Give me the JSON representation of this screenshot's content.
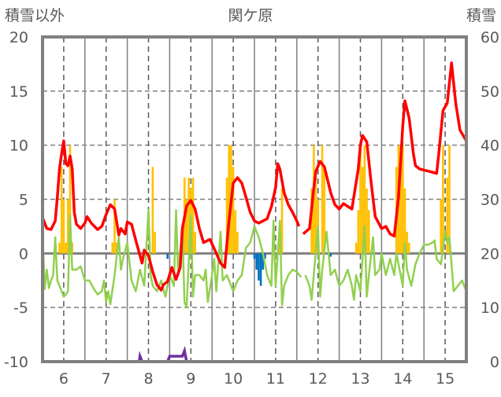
{
  "chart_data": {
    "type": "bar+line",
    "title": "関ケ原",
    "ylabel": "積雪以外",
    "y2label": "積雪",
    "ylim": [
      -10,
      20
    ],
    "y2lim": [
      0,
      60
    ],
    "xlim": [
      5.5,
      15.5
    ],
    "yticks": [
      "20",
      "15",
      "10",
      "5",
      "0",
      "-5",
      "-10"
    ],
    "y2ticks": [
      "60",
      "50",
      "40",
      "30",
      "20",
      "10",
      "0"
    ],
    "xticks": [
      "6",
      "7",
      "8",
      "9",
      "10",
      "11",
      "12",
      "13",
      "14",
      "15"
    ],
    "colors": {
      "red": "#ff0000",
      "green": "#92d050",
      "orange": "#ffc000",
      "blue": "#0070c0",
      "purple": "#7030a0",
      "frame": "#808080"
    },
    "red_series": [
      [
        5.5,
        3.3
      ],
      [
        5.6,
        2.3
      ],
      [
        5.7,
        2.2
      ],
      [
        5.8,
        3.0
      ],
      [
        5.85,
        5.2
      ],
      [
        5.9,
        7.8
      ],
      [
        5.95,
        9.2
      ],
      [
        6.0,
        10.4
      ],
      [
        6.05,
        8.3
      ],
      [
        6.1,
        8.1
      ],
      [
        6.15,
        9.0
      ],
      [
        6.2,
        7.8
      ],
      [
        6.25,
        3.8
      ],
      [
        6.3,
        2.7
      ],
      [
        6.4,
        2.3
      ],
      [
        6.5,
        2.8
      ],
      [
        6.55,
        3.4
      ],
      [
        6.65,
        2.8
      ],
      [
        6.8,
        2.2
      ],
      [
        6.9,
        2.5
      ],
      [
        7.0,
        3.6
      ],
      [
        7.1,
        4.5
      ],
      [
        7.2,
        4.1
      ],
      [
        7.3,
        1.7
      ],
      [
        7.35,
        2.3
      ],
      [
        7.45,
        1.8
      ],
      [
        7.5,
        2.9
      ],
      [
        7.6,
        2.7
      ],
      [
        7.7,
        1.2
      ],
      [
        7.8,
        -0.2
      ],
      [
        7.85,
        -0.9
      ],
      [
        7.9,
        0.3
      ],
      [
        8.0,
        -0.2
      ],
      [
        8.1,
        -1.7
      ],
      [
        8.2,
        -2.9
      ],
      [
        8.3,
        -3.4
      ],
      [
        8.35,
        -2.9
      ],
      [
        8.45,
        -2.6
      ],
      [
        8.55,
        -1.3
      ],
      [
        8.65,
        -2.4
      ],
      [
        8.75,
        -1.3
      ],
      [
        8.8,
        2.3
      ],
      [
        8.9,
        4.4
      ],
      [
        9.0,
        4.9
      ],
      [
        9.1,
        4.1
      ],
      [
        9.2,
        2.3
      ],
      [
        9.3,
        1.0
      ],
      [
        9.45,
        1.3
      ],
      [
        9.6,
        0
      ],
      [
        9.7,
        -0.9
      ],
      [
        9.8,
        -1.3
      ],
      [
        9.9,
        3.0
      ],
      [
        10.0,
        6.5
      ],
      [
        10.1,
        7.0
      ],
      [
        10.2,
        6.5
      ],
      [
        10.3,
        5.2
      ],
      [
        10.4,
        3.8
      ],
      [
        10.5,
        3.0
      ],
      [
        10.6,
        2.8
      ],
      [
        10.8,
        3.2
      ],
      [
        10.9,
        4.3
      ],
      [
        11.0,
        6.1
      ],
      [
        11.05,
        8.3
      ],
      [
        11.1,
        7.8
      ],
      [
        11.2,
        5.6
      ],
      [
        11.3,
        4.5
      ],
      [
        11.4,
        3.8
      ],
      [
        11.5,
        3.0
      ],
      [
        11.55,
        2.5
      ],
      null,
      [
        11.65,
        1.8
      ],
      [
        11.8,
        2.3
      ],
      [
        11.9,
        6.0
      ],
      [
        11.95,
        7.6
      ],
      [
        12.05,
        8.5
      ],
      [
        12.15,
        8.0
      ],
      [
        12.3,
        5.6
      ],
      [
        12.4,
        4.5
      ],
      [
        12.5,
        4.1
      ],
      [
        12.6,
        4.6
      ],
      [
        12.8,
        4.1
      ],
      [
        12.95,
        7.8
      ],
      [
        13.0,
        10.0
      ],
      [
        13.05,
        10.9
      ],
      [
        13.15,
        10.3
      ],
      [
        13.25,
        6.7
      ],
      [
        13.35,
        3.4
      ],
      [
        13.5,
        2.3
      ],
      [
        13.6,
        2.5
      ],
      [
        13.7,
        1.8
      ],
      [
        13.8,
        1.6
      ],
      [
        13.9,
        5.2
      ],
      [
        14.0,
        11.8
      ],
      [
        14.05,
        14.1
      ],
      [
        14.15,
        12.5
      ],
      [
        14.25,
        9.2
      ],
      [
        14.3,
        8.1
      ],
      [
        14.4,
        7.8
      ],
      [
        14.6,
        7.6
      ],
      [
        14.8,
        7.4
      ],
      [
        14.85,
        9.2
      ],
      [
        14.95,
        13.2
      ],
      [
        15.05,
        13.9
      ],
      [
        15.15,
        17.6
      ],
      [
        15.25,
        13.9
      ],
      [
        15.35,
        11.4
      ],
      [
        15.5,
        10.4
      ]
    ],
    "green_series": [
      [
        5.5,
        2.0
      ],
      [
        5.55,
        -3.3
      ],
      [
        5.6,
        -1.5
      ],
      [
        5.65,
        -3.2
      ],
      [
        5.7,
        -2.5
      ],
      [
        5.75,
        -2
      ],
      [
        5.8,
        1.5
      ],
      [
        5.85,
        -2.5
      ],
      [
        5.9,
        -3
      ],
      [
        5.95,
        -3.5
      ],
      [
        6.0,
        -4
      ],
      [
        6.05,
        -3.8
      ],
      [
        6.1,
        -3.5
      ],
      [
        6.15,
        3.5
      ],
      [
        6.2,
        -1.5
      ],
      [
        6.3,
        -1.5
      ],
      [
        6.4,
        -1.2
      ],
      [
        6.5,
        -2.5
      ],
      [
        6.6,
        -2.5
      ],
      [
        6.7,
        -3.2
      ],
      [
        6.8,
        -3.8
      ],
      [
        6.9,
        -3.5
      ],
      [
        6.95,
        -2.5
      ],
      [
        7.0,
        -4.5
      ],
      [
        7.05,
        -3.5
      ],
      [
        7.1,
        -4.7
      ],
      [
        7.2,
        -2
      ],
      [
        7.3,
        1.5
      ],
      [
        7.35,
        -1.5
      ],
      [
        7.4,
        -0.5
      ],
      [
        7.5,
        1
      ],
      [
        7.6,
        -2.5
      ],
      [
        7.7,
        -3.5
      ],
      [
        7.8,
        -1.5
      ],
      [
        7.9,
        -3
      ],
      [
        8.0,
        4
      ],
      [
        8.05,
        -2
      ],
      [
        8.1,
        -3
      ],
      [
        8.2,
        -3.5
      ],
      [
        8.3,
        -2.5
      ],
      [
        8.4,
        -4
      ],
      [
        8.5,
        -2
      ],
      [
        8.6,
        -3
      ],
      [
        8.65,
        4
      ],
      [
        8.7,
        -2
      ],
      [
        8.8,
        2.5
      ],
      [
        8.85,
        -4.5
      ],
      [
        8.9,
        -5
      ],
      [
        9.0,
        3.5
      ],
      [
        9.05,
        -4
      ],
      [
        9.1,
        -2
      ],
      [
        9.2,
        -2
      ],
      [
        9.3,
        -2.5
      ],
      [
        9.35,
        -1.5
      ],
      [
        9.4,
        -4.5
      ],
      [
        9.5,
        -2
      ],
      [
        9.55,
        -0.5
      ],
      [
        9.6,
        -3.5
      ],
      [
        9.7,
        2
      ],
      [
        9.75,
        -2.5
      ],
      [
        9.85,
        -2
      ],
      [
        10.0,
        -3.5
      ],
      [
        10.1,
        -2.5
      ],
      [
        10.2,
        -2
      ],
      [
        10.3,
        0.5
      ],
      [
        10.4,
        1
      ],
      [
        10.5,
        2.5
      ],
      [
        10.6,
        1.5
      ],
      [
        10.7,
        0
      ],
      [
        10.8,
        -2
      ],
      [
        10.9,
        -3
      ],
      [
        10.95,
        3
      ],
      [
        11.0,
        -3
      ],
      [
        11.1,
        3
      ],
      [
        11.15,
        -4.8
      ],
      [
        11.2,
        -3
      ],
      [
        11.3,
        -2
      ],
      [
        11.4,
        -1.5
      ],
      [
        11.5,
        -1.7
      ],
      [
        11.6,
        -2.2
      ],
      null,
      [
        11.7,
        -2
      ],
      [
        11.8,
        -3
      ],
      [
        11.85,
        -4.3
      ],
      [
        11.9,
        -2
      ],
      [
        12.0,
        2.5
      ],
      [
        12.05,
        -4
      ],
      [
        12.1,
        -1.5
      ],
      [
        12.2,
        2
      ],
      [
        12.3,
        -2
      ],
      [
        12.4,
        -1.5
      ],
      [
        12.5,
        -3
      ],
      [
        12.6,
        -2.5
      ],
      [
        12.7,
        -1.5
      ],
      [
        12.8,
        -3
      ],
      [
        12.85,
        -4.3
      ],
      [
        12.9,
        -2
      ],
      [
        13.0,
        -3.5
      ],
      [
        13.1,
        2.5
      ],
      [
        13.15,
        -4
      ],
      [
        13.2,
        -2
      ],
      [
        13.3,
        1.5
      ],
      [
        13.35,
        -2
      ],
      [
        13.45,
        -1.5
      ],
      [
        13.5,
        0
      ],
      [
        13.6,
        -2
      ],
      [
        13.7,
        -0.5
      ],
      [
        13.8,
        -2
      ],
      [
        13.85,
        0
      ],
      [
        14.0,
        -3
      ],
      [
        14.05,
        1
      ],
      [
        14.1,
        -1.5
      ],
      [
        14.2,
        -3
      ],
      [
        14.3,
        -1
      ],
      [
        14.4,
        0
      ],
      [
        14.5,
        0.8
      ],
      [
        14.6,
        0.8
      ],
      [
        14.7,
        1
      ],
      [
        14.75,
        1.2
      ],
      [
        14.8,
        -0.5
      ],
      [
        14.9,
        -1
      ],
      [
        15.0,
        2
      ],
      [
        15.05,
        1
      ],
      [
        15.1,
        1.5
      ],
      [
        15.2,
        -3.5
      ],
      [
        15.3,
        -3
      ],
      [
        15.4,
        -2.5
      ],
      [
        15.5,
        -3.5
      ]
    ],
    "orange_bars": [
      [
        5.9,
        1
      ],
      [
        5.95,
        8
      ],
      [
        6.0,
        5
      ],
      [
        6.05,
        1
      ],
      [
        6.1,
        5
      ],
      [
        6.15,
        10
      ],
      [
        6.2,
        1
      ],
      [
        7.15,
        1
      ],
      [
        7.2,
        5
      ],
      [
        7.25,
        1
      ],
      [
        8.1,
        8
      ],
      [
        8.15,
        2
      ],
      [
        8.85,
        7
      ],
      [
        8.9,
        5
      ],
      [
        8.95,
        7
      ],
      [
        9.0,
        6
      ],
      [
        9.05,
        7
      ],
      [
        9.1,
        2
      ],
      [
        9.85,
        7
      ],
      [
        9.9,
        10
      ],
      [
        9.95,
        10
      ],
      [
        10.0,
        8
      ],
      [
        10.05,
        4
      ],
      [
        10.1,
        2
      ],
      [
        11.1,
        3
      ],
      [
        11.15,
        6
      ],
      [
        11.85,
        6
      ],
      [
        11.9,
        10
      ],
      [
        11.95,
        7
      ],
      [
        12.0,
        5
      ],
      [
        12.1,
        10
      ],
      [
        12.15,
        8
      ],
      [
        12.9,
        1
      ],
      [
        12.95,
        4
      ],
      [
        13.0,
        10
      ],
      [
        13.05,
        8
      ],
      [
        13.1,
        10
      ],
      [
        13.15,
        6
      ],
      [
        13.2,
        4
      ],
      [
        13.85,
        8
      ],
      [
        13.9,
        10
      ],
      [
        13.95,
        10
      ],
      [
        14.0,
        10
      ],
      [
        14.05,
        6
      ],
      [
        14.1,
        2
      ],
      [
        14.15,
        1
      ],
      [
        14.9,
        5
      ],
      [
        14.95,
        10
      ],
      [
        15.05,
        7
      ],
      [
        15.1,
        10
      ]
    ],
    "blue_bars": [
      [
        8.45,
        -0.5
      ],
      [
        10.5,
        -0.5
      ],
      [
        10.55,
        -1.5
      ],
      [
        10.6,
        -2.5
      ],
      [
        10.65,
        -3
      ],
      [
        10.7,
        -1.5
      ],
      [
        10.75,
        -0.5
      ],
      [
        12.3,
        -0.3
      ]
    ],
    "purple_series_y2": [
      [
        5.5,
        0
      ],
      [
        7.78,
        0
      ],
      [
        7.8,
        1
      ],
      [
        7.85,
        0
      ],
      [
        8.45,
        0
      ],
      [
        8.5,
        1
      ],
      [
        8.8,
        1
      ],
      [
        8.85,
        2
      ],
      [
        8.9,
        0
      ],
      [
        15.5,
        0
      ]
    ]
  }
}
